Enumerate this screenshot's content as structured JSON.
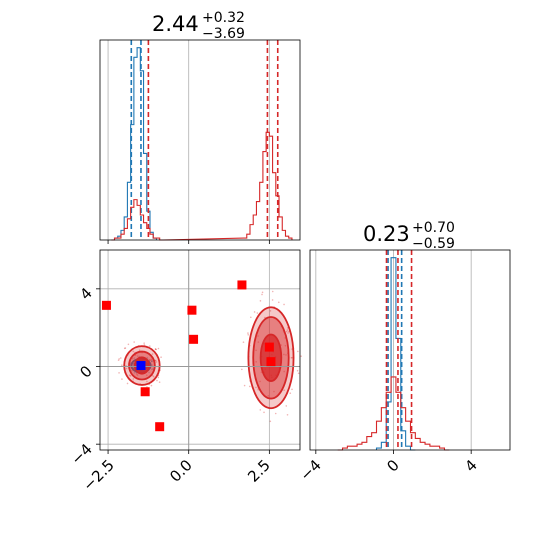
{
  "colors": {
    "blue": "#1f77b4",
    "red": "#d62728",
    "marker": "#ff0000",
    "marker_center": "#0000ff",
    "grid": "#b0b0b0"
  },
  "chart_data": {
    "type": "corner",
    "grid": true,
    "parameters": [
      {
        "title_value": "2.44",
        "title_plus": "+0.32",
        "title_minus": "−3.69",
        "range": [
          -2.75,
          3.45
        ],
        "ticks": [
          -2.5,
          0.0,
          2.5
        ],
        "tick_labels": [
          "−2.5",
          "0.0",
          "2.5"
        ]
      },
      {
        "title_value": "0.23",
        "title_plus": "+0.70",
        "title_minus": "−0.59",
        "range": [
          -4.3,
          6.0
        ],
        "ticks": [
          -4,
          0,
          4
        ],
        "tick_labels": [
          "−4",
          "0",
          "4"
        ]
      }
    ],
    "panels": {
      "hist_top": {
        "series": [
          {
            "name": "",
            "color": "blue",
            "x": [
              -2.25,
              -2.15,
              -2.05,
              -1.95,
              -1.85,
              -1.75,
              -1.65,
              -1.55,
              -1.45,
              -1.35,
              -1.25,
              -1.15,
              -1.05
            ],
            "y": [
              1,
              2,
              5,
              12,
              30,
              60,
              95,
              100,
              88,
              45,
              15,
              4,
              1
            ],
            "quantiles": [
              -1.78,
              -1.48
            ]
          },
          {
            "name": "",
            "color": "red",
            "x": [
              -2.35,
              -2.25,
              -2.15,
              -2.05,
              -1.95,
              -1.85,
              -1.75,
              -1.65,
              -1.55,
              -1.45,
              -1.35,
              -1.25,
              -1.15,
              -1.05,
              -0.95,
              -0.85,
              1.75,
              1.85,
              1.95,
              2.05,
              2.15,
              2.25,
              2.35,
              2.45,
              2.55,
              2.65,
              2.75,
              2.85,
              2.95,
              3.05,
              3.15
            ],
            "y": [
              0,
              1,
              1,
              3,
              6,
              11,
              17,
              21,
              18,
              13,
              9,
              6,
              3,
              1,
              1,
              0,
              1,
              3,
              8,
              13,
              20,
              30,
              46,
              56,
              54,
              35,
              23,
              12,
              5,
              2,
              1
            ],
            "quantiles": [
              -1.25,
              2.44,
              2.76
            ]
          }
        ],
        "ymax": 100
      },
      "scatter": {
        "contours": [
          {
            "color": "blue",
            "cx": -1.48,
            "cy": 0.05,
            "levels": [
              [
                0.3,
                0.35
              ],
              [
                0.2,
                0.24
              ],
              [
                0.1,
                0.12
              ]
            ]
          },
          {
            "color": "red",
            "cx": -1.45,
            "cy": 0.05,
            "levels": [
              [
                0.55,
                1.0
              ],
              [
                0.4,
                0.72
              ],
              [
                0.22,
                0.42
              ]
            ]
          },
          {
            "color": "red",
            "cx": 2.55,
            "cy": 0.45,
            "levels": [
              [
                0.7,
                2.6
              ],
              [
                0.55,
                2.1
              ],
              [
                0.32,
                1.2
              ]
            ]
          }
        ],
        "markers": [
          {
            "x": -2.55,
            "y": 3.15
          },
          {
            "x": 0.1,
            "y": 2.9
          },
          {
            "x": 0.15,
            "y": 1.4
          },
          {
            "x": 1.65,
            "y": 4.2
          },
          {
            "x": -1.35,
            "y": -1.3
          },
          {
            "x": -0.9,
            "y": -3.1
          },
          {
            "x": 2.5,
            "y": 1.0
          },
          {
            "x": 2.55,
            "y": 0.25
          }
        ],
        "center_marker": {
          "x": -1.48,
          "y": 0.05
        },
        "crosshair": {
          "x": 0.0,
          "y": 0.0
        }
      },
      "hist_right": {
        "series": [
          {
            "name": "",
            "color": "blue",
            "x": [
              -0.75,
              -0.5,
              -0.25,
              0.0,
              0.25,
              0.5,
              0.75,
              1.0
            ],
            "y": [
              1,
              4,
              25,
              100,
              58,
              10,
              2,
              0
            ],
            "quantiles": [
              -0.28,
              0.42
            ]
          },
          {
            "name": "",
            "color": "red",
            "x": [
              -2.75,
              -2.5,
              -2.25,
              -2.0,
              -1.75,
              -1.5,
              -1.25,
              -1.0,
              -0.75,
              -0.5,
              -0.25,
              0.0,
              0.25,
              0.5,
              0.75,
              1.0,
              1.25,
              1.5,
              1.75,
              2.0,
              2.25,
              2.5,
              2.75
            ],
            "y": [
              0,
              1,
              2,
              2,
              3,
              4,
              7,
              9,
              15,
              22,
              30,
              38,
              30,
              22,
              15,
              9,
              6,
              4,
              3,
              2,
              2,
              1,
              0
            ],
            "quantiles": [
              -0.36,
              0.23,
              0.93
            ]
          }
        ],
        "ymax": 100
      }
    }
  }
}
